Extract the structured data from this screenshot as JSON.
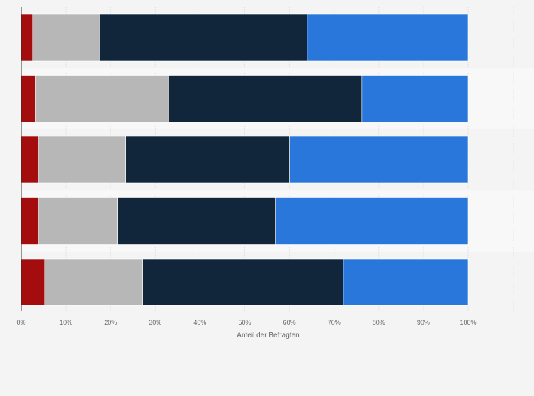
{
  "chart_data": {
    "type": "bar",
    "orientation": "horizontal",
    "stacked": true,
    "title": "",
    "xlabel": "Anteil der Befragten",
    "ylabel": "",
    "xlim": [
      0,
      100
    ],
    "x_ticks": [
      "0%",
      "10%",
      "20%",
      "30%",
      "40%",
      "50%",
      "60%",
      "70%",
      "80%",
      "90%",
      "100%"
    ],
    "categories": [
      "",
      "",
      "",
      "",
      ""
    ],
    "series": [
      {
        "color": "#a30d0d",
        "values": [
          2.5,
          3.2,
          3.8,
          3.8,
          5.2
        ]
      },
      {
        "color": "#b7b7b7",
        "values": [
          15.0,
          29.8,
          19.6,
          17.7,
          22.0
        ]
      },
      {
        "color": "#11263a",
        "values": [
          46.5,
          43.2,
          36.6,
          35.5,
          44.9
        ]
      },
      {
        "color": "#2a77dc",
        "values": [
          36.0,
          23.8,
          40.0,
          43.0,
          27.9
        ]
      }
    ],
    "grid": "vertical",
    "legend": "none"
  }
}
